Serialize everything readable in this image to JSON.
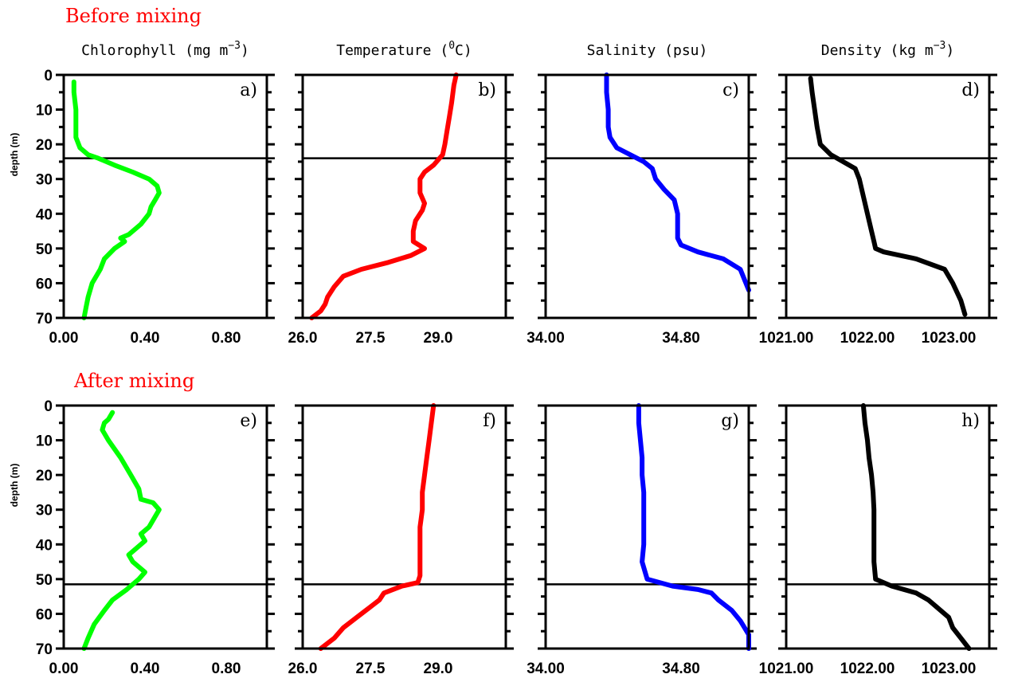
{
  "titles": {
    "before": "Before mixing",
    "after": "After mixing"
  },
  "columns": [
    {
      "title": "Chlorophyll (mg m",
      "superscript": "−3",
      "suffix": ")",
      "color": "#00ff00"
    },
    {
      "title": "Temperature (",
      "superscript": "0",
      "suffix": "C)",
      "color": "#ff0000"
    },
    {
      "title": "Salinity (psu)",
      "superscript": "",
      "suffix": "",
      "color": "#0000ff"
    },
    {
      "title": "Density (kg m",
      "superscript": "−3",
      "suffix": ")",
      "color": "#000000"
    }
  ],
  "ylabel": "depth (m)",
  "yticks": [
    "0",
    "10",
    "20",
    "30",
    "40",
    "50",
    "60",
    "70"
  ],
  "chart_data": [
    {
      "type": "line",
      "label": "a)",
      "row": "before",
      "variable": "Chlorophyll",
      "color": "#00ff00",
      "xlim": [
        0,
        1.0
      ],
      "ylim": [
        70,
        0
      ],
      "xticks": [
        {
          "v": 0,
          "t": "0.00"
        },
        {
          "v": 0.4,
          "t": "0.40"
        },
        {
          "v": 0.8,
          "t": "0.80"
        }
      ],
      "mixed_layer_depth": 24,
      "x": [
        0.05,
        0.05,
        0.06,
        0.06,
        0.06,
        0.08,
        0.12,
        0.17,
        0.25,
        0.34,
        0.42,
        0.46,
        0.47,
        0.45,
        0.43,
        0.42,
        0.38,
        0.32,
        0.28,
        0.3,
        0.25,
        0.2,
        0.18,
        0.14,
        0.12,
        0.11,
        0.1
      ],
      "y": [
        2,
        5,
        10,
        15,
        18,
        21,
        23,
        24,
        26,
        28,
        30,
        32,
        34,
        36,
        38,
        40,
        43,
        46,
        47,
        48,
        50,
        53,
        56,
        60,
        64,
        67,
        70
      ]
    },
    {
      "type": "line",
      "label": "b)",
      "row": "before",
      "variable": "Temperature",
      "color": "#ff0000",
      "xlim": [
        26.0,
        30.5
      ],
      "ylim": [
        70,
        0
      ],
      "xticks": [
        {
          "v": 26.0,
          "t": "26.0"
        },
        {
          "v": 27.5,
          "t": "27.5"
        },
        {
          "v": 29.0,
          "t": "29.0"
        }
      ],
      "mixed_layer_depth": 24,
      "x": [
        29.4,
        29.35,
        29.3,
        29.25,
        29.2,
        29.15,
        29.1,
        28.9,
        28.7,
        28.6,
        28.6,
        28.7,
        28.65,
        28.5,
        28.45,
        28.45,
        28.7,
        28.4,
        27.9,
        27.3,
        26.9,
        26.7,
        26.55,
        26.5,
        26.4,
        26.2
      ],
      "y": [
        0,
        3,
        8,
        12,
        16,
        20,
        23,
        26,
        28,
        30,
        34,
        37,
        39,
        42,
        45,
        48,
        50,
        52,
        54,
        56,
        58,
        61,
        64,
        66,
        68,
        70
      ]
    },
    {
      "type": "line",
      "label": "c)",
      "row": "before",
      "variable": "Salinity",
      "color": "#0000ff",
      "xlim": [
        34.0,
        35.2
      ],
      "ylim": [
        70,
        0
      ],
      "xticks": [
        {
          "v": 34.0,
          "t": "34.00"
        },
        {
          "v": 34.8,
          "t": "34.80"
        }
      ],
      "mixed_layer_depth": 24,
      "x": [
        34.36,
        34.36,
        34.37,
        34.37,
        34.38,
        34.42,
        34.5,
        34.58,
        34.63,
        34.65,
        34.7,
        34.76,
        34.78,
        34.78,
        34.78,
        34.8,
        34.9,
        35.05,
        35.15,
        35.2
      ],
      "y": [
        0,
        5,
        10,
        15,
        18,
        21,
        23,
        25,
        27,
        30,
        33,
        36,
        40,
        44,
        47,
        49,
        51,
        53,
        56,
        62
      ]
    },
    {
      "type": "line",
      "label": "d)",
      "row": "before",
      "variable": "Density",
      "color": "#000000",
      "xlim": [
        1021.0,
        1023.5
      ],
      "ylim": [
        70,
        0
      ],
      "xticks": [
        {
          "v": 1021.0,
          "t": "1021.00"
        },
        {
          "v": 1022.0,
          "t": "1022.00"
        },
        {
          "v": 1023.0,
          "t": "1023.00"
        }
      ],
      "mixed_layer_depth": 24,
      "x": [
        1021.3,
        1021.32,
        1021.35,
        1021.38,
        1021.42,
        1021.55,
        1021.7,
        1021.85,
        1021.9,
        1021.95,
        1022.0,
        1022.05,
        1022.08,
        1022.1,
        1022.2,
        1022.6,
        1022.95,
        1023.05,
        1023.15,
        1023.2
      ],
      "y": [
        1,
        5,
        10,
        15,
        20,
        23,
        25,
        27,
        30,
        35,
        40,
        45,
        48,
        50,
        51,
        53,
        56,
        60,
        65,
        69
      ]
    },
    {
      "type": "line",
      "label": "e)",
      "row": "after",
      "variable": "Chlorophyll",
      "color": "#00ff00",
      "xlim": [
        0,
        1.0
      ],
      "ylim": [
        70,
        0
      ],
      "xticks": [
        {
          "v": 0,
          "t": "0.00"
        },
        {
          "v": 0.4,
          "t": "0.40"
        },
        {
          "v": 0.8,
          "t": "0.80"
        }
      ],
      "mixed_layer_depth": 51.5,
      "x": [
        0.24,
        0.22,
        0.2,
        0.19,
        0.22,
        0.28,
        0.33,
        0.37,
        0.38,
        0.44,
        0.47,
        0.44,
        0.42,
        0.38,
        0.4,
        0.36,
        0.32,
        0.34,
        0.4,
        0.37,
        0.31,
        0.24,
        0.2,
        0.15,
        0.12,
        0.1
      ],
      "y": [
        2,
        4,
        5,
        7,
        10,
        15,
        20,
        24,
        27,
        28,
        30,
        33,
        35,
        37,
        39,
        41,
        43,
        45,
        48,
        50,
        53,
        56,
        59,
        63,
        67,
        70
      ]
    },
    {
      "type": "line",
      "label": "f)",
      "row": "after",
      "variable": "Temperature",
      "color": "#ff0000",
      "xlim": [
        26.0,
        30.5
      ],
      "ylim": [
        70,
        0
      ],
      "xticks": [
        {
          "v": 26.0,
          "t": "26.0"
        },
        {
          "v": 27.5,
          "t": "27.5"
        },
        {
          "v": 29.0,
          "t": "29.0"
        }
      ],
      "mixed_layer_depth": 51.5,
      "x": [
        28.9,
        28.85,
        28.8,
        28.75,
        28.7,
        28.65,
        28.65,
        28.6,
        28.6,
        28.6,
        28.6,
        28.55,
        28.2,
        27.8,
        27.7,
        27.5,
        27.2,
        26.9,
        26.7,
        26.4
      ],
      "y": [
        0,
        5,
        10,
        15,
        20,
        25,
        30,
        35,
        40,
        45,
        49,
        51,
        52,
        54,
        56,
        58,
        61,
        64,
        67,
        70
      ]
    },
    {
      "type": "line",
      "label": "g)",
      "row": "after",
      "variable": "Salinity",
      "color": "#0000ff",
      "xlim": [
        34.0,
        35.2
      ],
      "ylim": [
        70,
        0
      ],
      "xticks": [
        {
          "v": 34.0,
          "t": "34.00"
        },
        {
          "v": 34.8,
          "t": "34.80"
        }
      ],
      "mixed_layer_depth": 51.5,
      "x": [
        34.55,
        34.55,
        34.56,
        34.57,
        34.57,
        34.58,
        34.58,
        34.58,
        34.58,
        34.57,
        34.6,
        34.75,
        34.9,
        34.98,
        35.02,
        35.1,
        35.15,
        35.2,
        35.2
      ],
      "y": [
        0,
        5,
        10,
        15,
        20,
        25,
        30,
        35,
        40,
        45,
        50,
        52,
        53,
        54,
        56,
        59,
        62,
        66,
        70
      ]
    },
    {
      "type": "line",
      "label": "h)",
      "row": "after",
      "variable": "Density",
      "color": "#000000",
      "xlim": [
        1021.0,
        1023.5
      ],
      "ylim": [
        70,
        0
      ],
      "xticks": [
        {
          "v": 1021.0,
          "t": "1021.00"
        },
        {
          "v": 1022.0,
          "t": "1022.00"
        },
        {
          "v": 1023.0,
          "t": "1023.00"
        }
      ],
      "mixed_layer_depth": 51.5,
      "x": [
        1021.95,
        1021.97,
        1022.0,
        1022.02,
        1022.05,
        1022.07,
        1022.08,
        1022.08,
        1022.08,
        1022.08,
        1022.1,
        1022.3,
        1022.6,
        1022.75,
        1022.85,
        1023.0,
        1023.05,
        1023.15,
        1023.25
      ],
      "y": [
        0,
        5,
        10,
        15,
        20,
        25,
        30,
        35,
        40,
        45,
        50,
        52,
        54,
        56,
        58,
        61,
        64,
        67,
        70
      ]
    }
  ]
}
